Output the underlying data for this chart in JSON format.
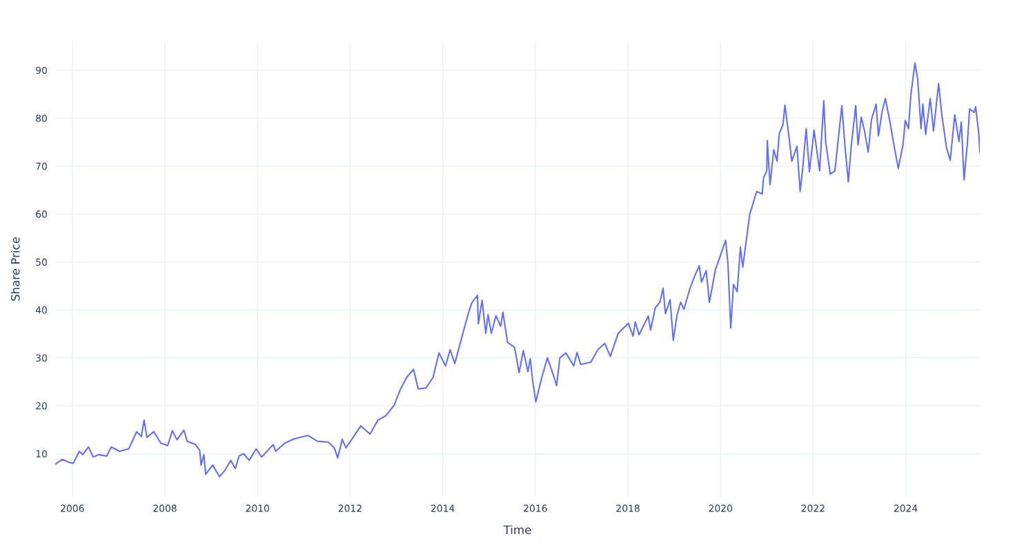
{
  "chart_data": {
    "type": "line",
    "xlabel": "Time",
    "ylabel": "Share Price",
    "grid": true,
    "xlim": [
      2005.63,
      2025.6
    ],
    "ylim": [
      1,
      96
    ],
    "xticks": [
      2006,
      2008,
      2010,
      2012,
      2014,
      2016,
      2018,
      2020,
      2022,
      2024
    ],
    "yticks": [
      10,
      20,
      30,
      40,
      50,
      60,
      70,
      80,
      90
    ],
    "series": [
      {
        "color": "#636efa",
        "x": [
          2005.63,
          2005.78,
          2005.93,
          2006.02,
          2006.15,
          2006.22,
          2006.35,
          2006.45,
          2006.57,
          2006.74,
          2006.84,
          2007.02,
          2007.22,
          2007.39,
          2007.49,
          2007.55,
          2007.61,
          2007.76,
          2007.91,
          2008.06,
          2008.16,
          2008.26,
          2008.41,
          2008.48,
          2008.66,
          2008.75,
          2008.78,
          2008.84,
          2008.88,
          2009.03,
          2009.18,
          2009.3,
          2009.42,
          2009.52,
          2009.6,
          2009.7,
          2009.82,
          2009.97,
          2010.09,
          2010.34,
          2010.39,
          2010.59,
          2010.79,
          2011.09,
          2011.29,
          2011.53,
          2011.66,
          2011.73,
          2011.83,
          2011.91,
          2012.03,
          2012.23,
          2012.43,
          2012.6,
          2012.77,
          2012.95,
          2013.08,
          2013.22,
          2013.37,
          2013.47,
          2013.64,
          2013.79,
          2013.92,
          2014.06,
          2014.16,
          2014.26,
          2014.41,
          2014.56,
          2014.63,
          2014.75,
          2014.77,
          2014.85,
          2014.93,
          2014.98,
          2015.05,
          2015.15,
          2015.25,
          2015.3,
          2015.4,
          2015.55,
          2015.65,
          2015.74,
          2015.84,
          2015.89,
          2015.94,
          2016.01,
          2016.14,
          2016.26,
          2016.39,
          2016.46,
          2016.53,
          2016.66,
          2016.83,
          2016.9,
          2016.98,
          2017.2,
          2017.35,
          2017.5,
          2017.62,
          2017.79,
          2018.01,
          2018.11,
          2018.16,
          2018.24,
          2018.44,
          2018.49,
          2018.59,
          2018.69,
          2018.76,
          2018.81,
          2018.91,
          2018.98,
          2019.06,
          2019.14,
          2019.21,
          2019.34,
          2019.44,
          2019.54,
          2019.59,
          2019.69,
          2019.76,
          2019.89,
          2019.99,
          2020.11,
          2020.16,
          2020.22,
          2020.28,
          2020.36,
          2020.43,
          2020.48,
          2020.58,
          2020.63,
          2020.78,
          2020.9,
          2020.93,
          2021.0,
          2021.01,
          2021.07,
          2021.15,
          2021.22,
          2021.27,
          2021.35,
          2021.39,
          2021.47,
          2021.54,
          2021.65,
          2021.72,
          2021.77,
          2021.85,
          2021.92,
          2022.02,
          2022.14,
          2022.23,
          2022.27,
          2022.37,
          2022.47,
          2022.62,
          2022.69,
          2022.76,
          2022.82,
          2022.92,
          2022.97,
          2023.04,
          2023.11,
          2023.19,
          2023.26,
          2023.36,
          2023.41,
          2023.49,
          2023.56,
          2023.66,
          2023.76,
          2023.84,
          2023.94,
          2023.99,
          2024.06,
          2024.11,
          2024.2,
          2024.26,
          2024.33,
          2024.37,
          2024.43,
          2024.53,
          2024.6,
          2024.71,
          2024.78,
          2024.88,
          2024.96,
          2025.06,
          2025.15,
          2025.2,
          2025.26,
          2025.33,
          2025.38,
          2025.48,
          2025.51,
          2025.58,
          2025.6
        ],
        "values": [
          7.8,
          8.8,
          8.2,
          8.0,
          10.5,
          9.8,
          11.4,
          9.3,
          9.8,
          9.5,
          11.4,
          10.5,
          11.0,
          14.6,
          13.6,
          17.0,
          13.4,
          14.6,
          12.2,
          11.7,
          14.8,
          12.9,
          14.9,
          12.6,
          11.9,
          10.7,
          7.6,
          9.8,
          5.7,
          7.6,
          5.2,
          6.6,
          8.6,
          6.9,
          9.5,
          10.0,
          8.6,
          11.0,
          9.3,
          11.9,
          10.5,
          12.2,
          13.1,
          13.8,
          12.6,
          12.4,
          11.2,
          9.1,
          13.0,
          11.2,
          12.9,
          15.8,
          14.1,
          17.0,
          17.9,
          20.1,
          23.3,
          25.9,
          27.6,
          23.5,
          23.7,
          25.9,
          31.0,
          28.3,
          31.7,
          28.8,
          34.2,
          39.5,
          41.5,
          43.0,
          37.1,
          42.0,
          35.1,
          39.0,
          35.1,
          38.8,
          36.6,
          39.5,
          33.2,
          32.2,
          26.9,
          31.5,
          27.1,
          29.8,
          25.4,
          20.8,
          25.9,
          30.0,
          26.4,
          24.2,
          30.0,
          31.0,
          28.3,
          31.1,
          28.6,
          29.1,
          31.7,
          33.0,
          30.3,
          35.1,
          37.2,
          34.5,
          37.5,
          34.8,
          38.7,
          35.8,
          40.4,
          41.6,
          44.5,
          39.2,
          42.1,
          33.6,
          38.9,
          41.6,
          40.1,
          44.5,
          47.0,
          49.2,
          45.8,
          48.2,
          41.6,
          48.4,
          51.1,
          54.5,
          49.7,
          36.2,
          45.3,
          43.8,
          53.1,
          48.9,
          56.2,
          59.9,
          64.7,
          64.2,
          67.6,
          69.0,
          75.3,
          66.1,
          73.4,
          71.0,
          76.8,
          78.7,
          82.7,
          76.8,
          71.0,
          74.1,
          64.7,
          69.0,
          77.8,
          68.8,
          77.5,
          69.0,
          83.6,
          75.1,
          68.3,
          69.0,
          82.6,
          73.9,
          66.7,
          73.9,
          82.6,
          74.4,
          80.2,
          77.3,
          72.9,
          79.7,
          82.9,
          76.3,
          81.4,
          84.1,
          79.2,
          73.6,
          69.5,
          74.4,
          79.5,
          77.8,
          84.8,
          91.5,
          88.0,
          77.8,
          82.9,
          76.6,
          84.1,
          77.3,
          87.2,
          80.7,
          73.9,
          71.2,
          80.7,
          75.1,
          79.2,
          67.1,
          74.6,
          81.9,
          81.2,
          82.4,
          76.6,
          72.9
        ]
      }
    ]
  }
}
